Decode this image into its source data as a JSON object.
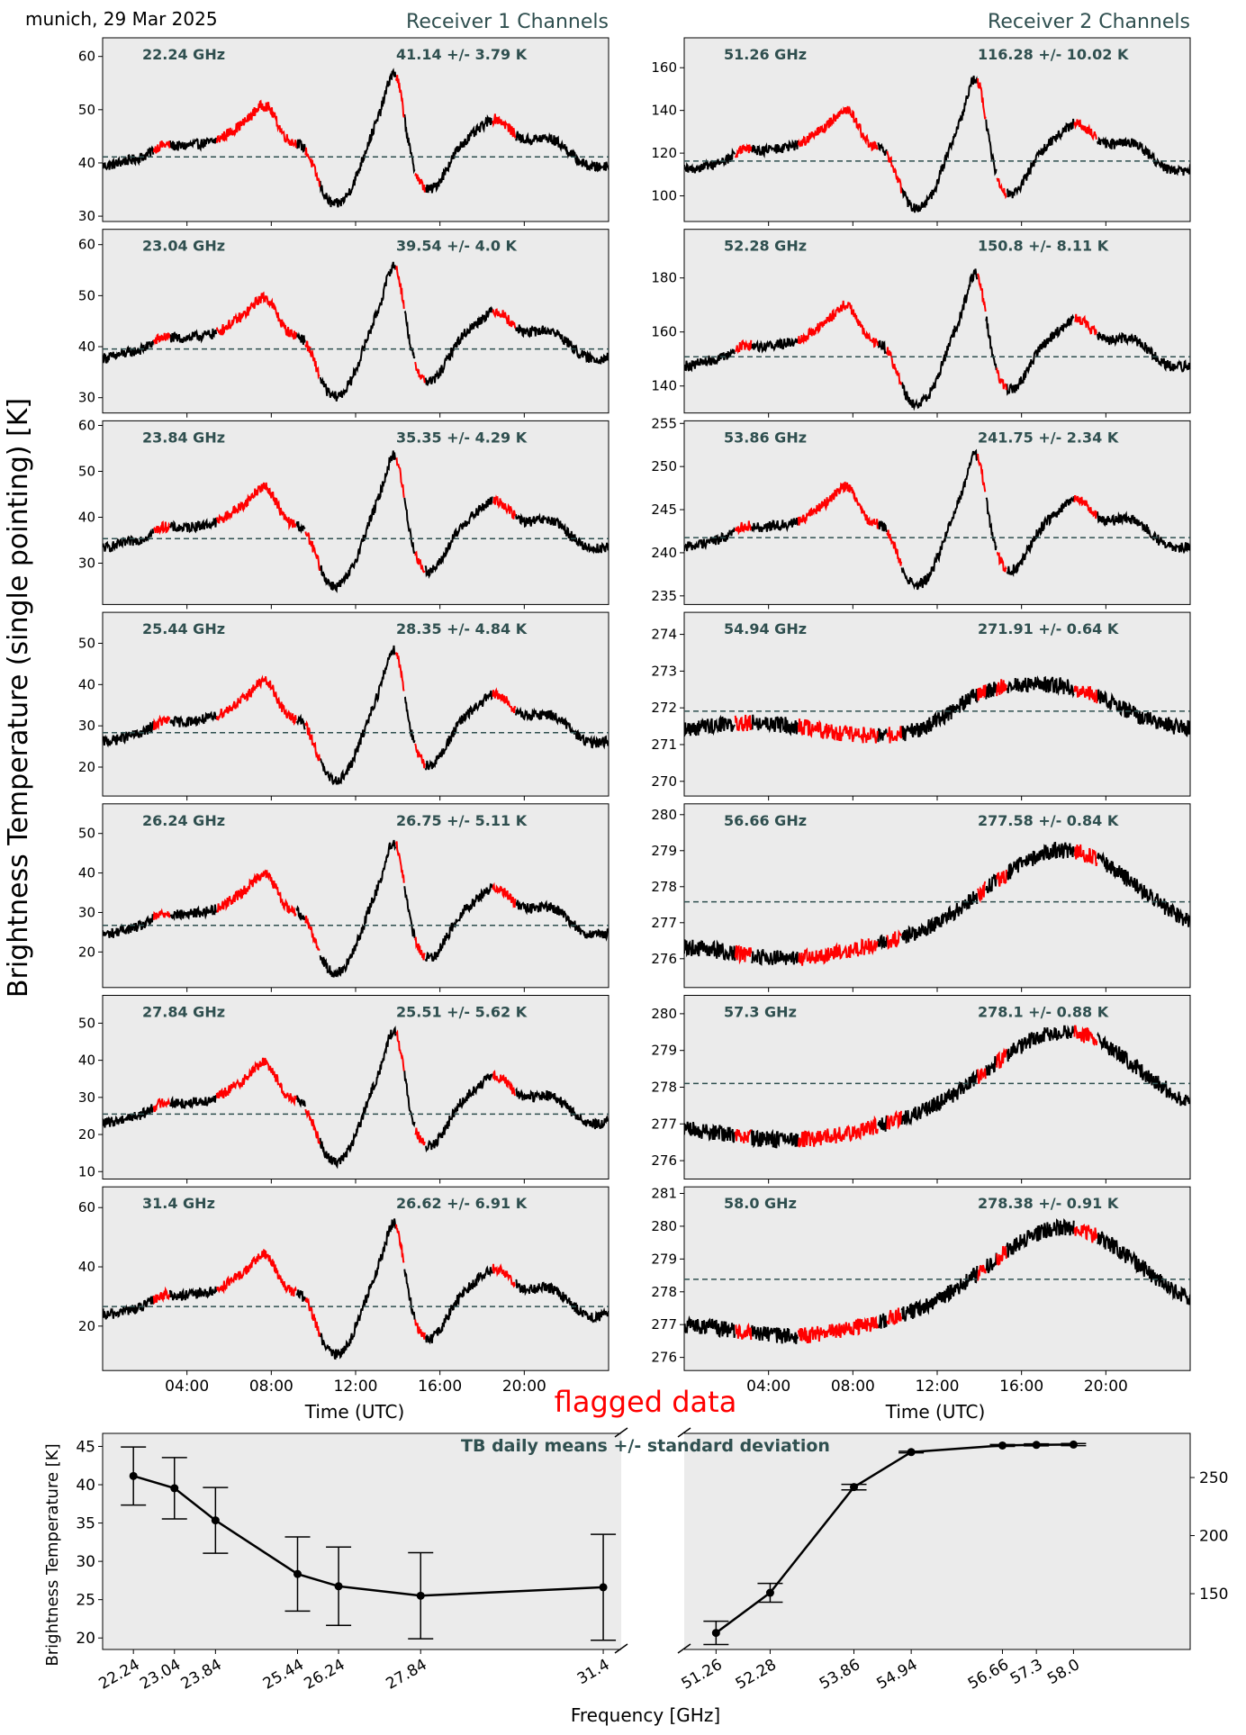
{
  "header": {
    "location_date": "munich, 29 Mar 2025",
    "receiver1_title": "Receiver 1 Channels",
    "receiver2_title": "Receiver 2 Channels"
  },
  "figure": {
    "ylabel_main": "Brightness Temperature (single pointing) [K]",
    "xlabel_time": "Time (UTC)",
    "flagged_label": "flagged data",
    "summary_title": "TB daily means +/- standard deviation",
    "summary_ylabel": "Brightness Temperature [K]",
    "summary_xlabel": "Frequency [GHz]"
  },
  "colors": {
    "panel_bg": "#ebebeb",
    "data": "#000000",
    "flagged": "#ff0000",
    "mean_line": "#2f4f4f",
    "annotation": "#2f4f4f",
    "title": "#2f4f4f"
  },
  "chart_data": [
    {
      "type": "line",
      "receiver": 1,
      "freq_label": "22.24 GHz",
      "stat_label": "41.14 +/- 3.79 K",
      "mean": 41.14,
      "ylim": [
        29,
        63.5
      ],
      "yticks": [
        30,
        40,
        50,
        60
      ]
    },
    {
      "type": "line",
      "receiver": 1,
      "freq_label": "23.04 GHz",
      "stat_label": "39.54 +/- 4.0 K",
      "mean": 39.54,
      "ylim": [
        27,
        63
      ],
      "yticks": [
        30,
        40,
        50,
        60
      ]
    },
    {
      "type": "line",
      "receiver": 1,
      "freq_label": "23.84 GHz",
      "stat_label": "35.35 +/- 4.29 K",
      "mean": 35.35,
      "ylim": [
        21,
        61
      ],
      "yticks": [
        30,
        40,
        50,
        60
      ]
    },
    {
      "type": "line",
      "receiver": 1,
      "freq_label": "25.44 GHz",
      "stat_label": "28.35 +/- 4.84 K",
      "mean": 28.35,
      "ylim": [
        13,
        57.5
      ],
      "yticks": [
        20,
        30,
        40,
        50
      ]
    },
    {
      "type": "line",
      "receiver": 1,
      "freq_label": "26.24 GHz",
      "stat_label": "26.75 +/- 5.11 K",
      "mean": 26.75,
      "ylim": [
        11,
        57.5
      ],
      "yticks": [
        20,
        30,
        40,
        50
      ]
    },
    {
      "type": "line",
      "receiver": 1,
      "freq_label": "27.84 GHz",
      "stat_label": "25.51 +/- 5.62 K",
      "mean": 25.51,
      "ylim": [
        8,
        57.5
      ],
      "yticks": [
        10,
        20,
        30,
        40,
        50
      ]
    },
    {
      "type": "line",
      "receiver": 1,
      "freq_label": "31.4 GHz",
      "stat_label": "26.62 +/- 6.91 K",
      "mean": 26.62,
      "ylim": [
        5,
        67
      ],
      "yticks": [
        20,
        40,
        60
      ]
    },
    {
      "type": "line",
      "receiver": 2,
      "freq_label": "51.26 GHz",
      "stat_label": "116.28 +/- 10.02 K",
      "mean": 116.28,
      "ylim": [
        88,
        174
      ],
      "yticks": [
        100,
        120,
        140,
        160
      ]
    },
    {
      "type": "line",
      "receiver": 2,
      "freq_label": "52.28 GHz",
      "stat_label": "150.8 +/- 8.11 K",
      "mean": 150.8,
      "ylim": [
        130,
        198
      ],
      "yticks": [
        140,
        160,
        180
      ]
    },
    {
      "type": "line",
      "receiver": 2,
      "freq_label": "53.86 GHz",
      "stat_label": "241.75 +/- 2.34 K",
      "mean": 241.75,
      "ylim": [
        234,
        255.3
      ],
      "yticks": [
        235,
        240,
        245,
        250,
        255
      ]
    },
    {
      "type": "line",
      "receiver": 2,
      "freq_label": "54.94 GHz",
      "stat_label": "271.91 +/- 0.64 K",
      "mean": 271.91,
      "ylim": [
        269.6,
        274.6
      ],
      "yticks": [
        270,
        271,
        272,
        273,
        274
      ]
    },
    {
      "type": "line",
      "receiver": 2,
      "freq_label": "56.66 GHz",
      "stat_label": "277.58 +/- 0.84 K",
      "mean": 277.58,
      "ylim": [
        275.2,
        280.3
      ],
      "yticks": [
        276,
        277,
        278,
        279,
        280
      ]
    },
    {
      "type": "line",
      "receiver": 2,
      "freq_label": "57.3 GHz",
      "stat_label": "278.1 +/- 0.88 K",
      "mean": 278.1,
      "ylim": [
        275.5,
        280.5
      ],
      "yticks": [
        276,
        277,
        278,
        279,
        280
      ]
    },
    {
      "type": "line",
      "receiver": 2,
      "freq_label": "58.0 GHz",
      "stat_label": "278.38 +/- 0.91 K",
      "mean": 278.38,
      "ylim": [
        275.6,
        281.2
      ],
      "yticks": [
        276,
        277,
        278,
        279,
        280,
        281
      ]
    },
    {
      "type": "errorbar",
      "title": "TB daily means +/- standard deviation",
      "xlabel": "Frequency [GHz]",
      "ylabel": "Brightness Temperature [K]",
      "left": {
        "x": [
          22.24,
          23.04,
          23.84,
          25.44,
          26.24,
          27.84,
          31.4
        ],
        "tick_labels": [
          "22.24",
          "23.04",
          "23.84",
          "25.44",
          "26.24",
          "27.84",
          "31.4"
        ],
        "y": [
          41.14,
          39.54,
          35.35,
          28.35,
          26.75,
          25.51,
          26.62
        ],
        "err": [
          3.79,
          4.0,
          4.29,
          4.84,
          5.11,
          5.62,
          6.91
        ],
        "ylim": [
          18.5,
          46.7
        ],
        "yticks": [
          20,
          25,
          30,
          35,
          40,
          45
        ]
      },
      "right": {
        "x": [
          51.26,
          52.28,
          53.86,
          54.94,
          56.66,
          57.3,
          58.0
        ],
        "tick_labels": [
          "51.26",
          "52.28",
          "53.86",
          "54.94",
          "56.66",
          "57.3",
          "58.0"
        ],
        "y": [
          116.28,
          150.8,
          241.75,
          271.91,
          277.58,
          278.1,
          278.38
        ],
        "err": [
          10.02,
          8.11,
          2.34,
          0.64,
          0.84,
          0.88,
          0.91
        ],
        "ylim": [
          102,
          288
        ],
        "yticks": [
          150,
          200,
          250
        ]
      }
    }
  ],
  "time_axis": {
    "label": "Time (UTC)",
    "range_hours": [
      0,
      24
    ],
    "ticks": [
      4,
      8,
      12,
      16,
      20
    ],
    "tick_labels": [
      "04:00",
      "08:00",
      "12:00",
      "16:00",
      "20:00"
    ]
  }
}
